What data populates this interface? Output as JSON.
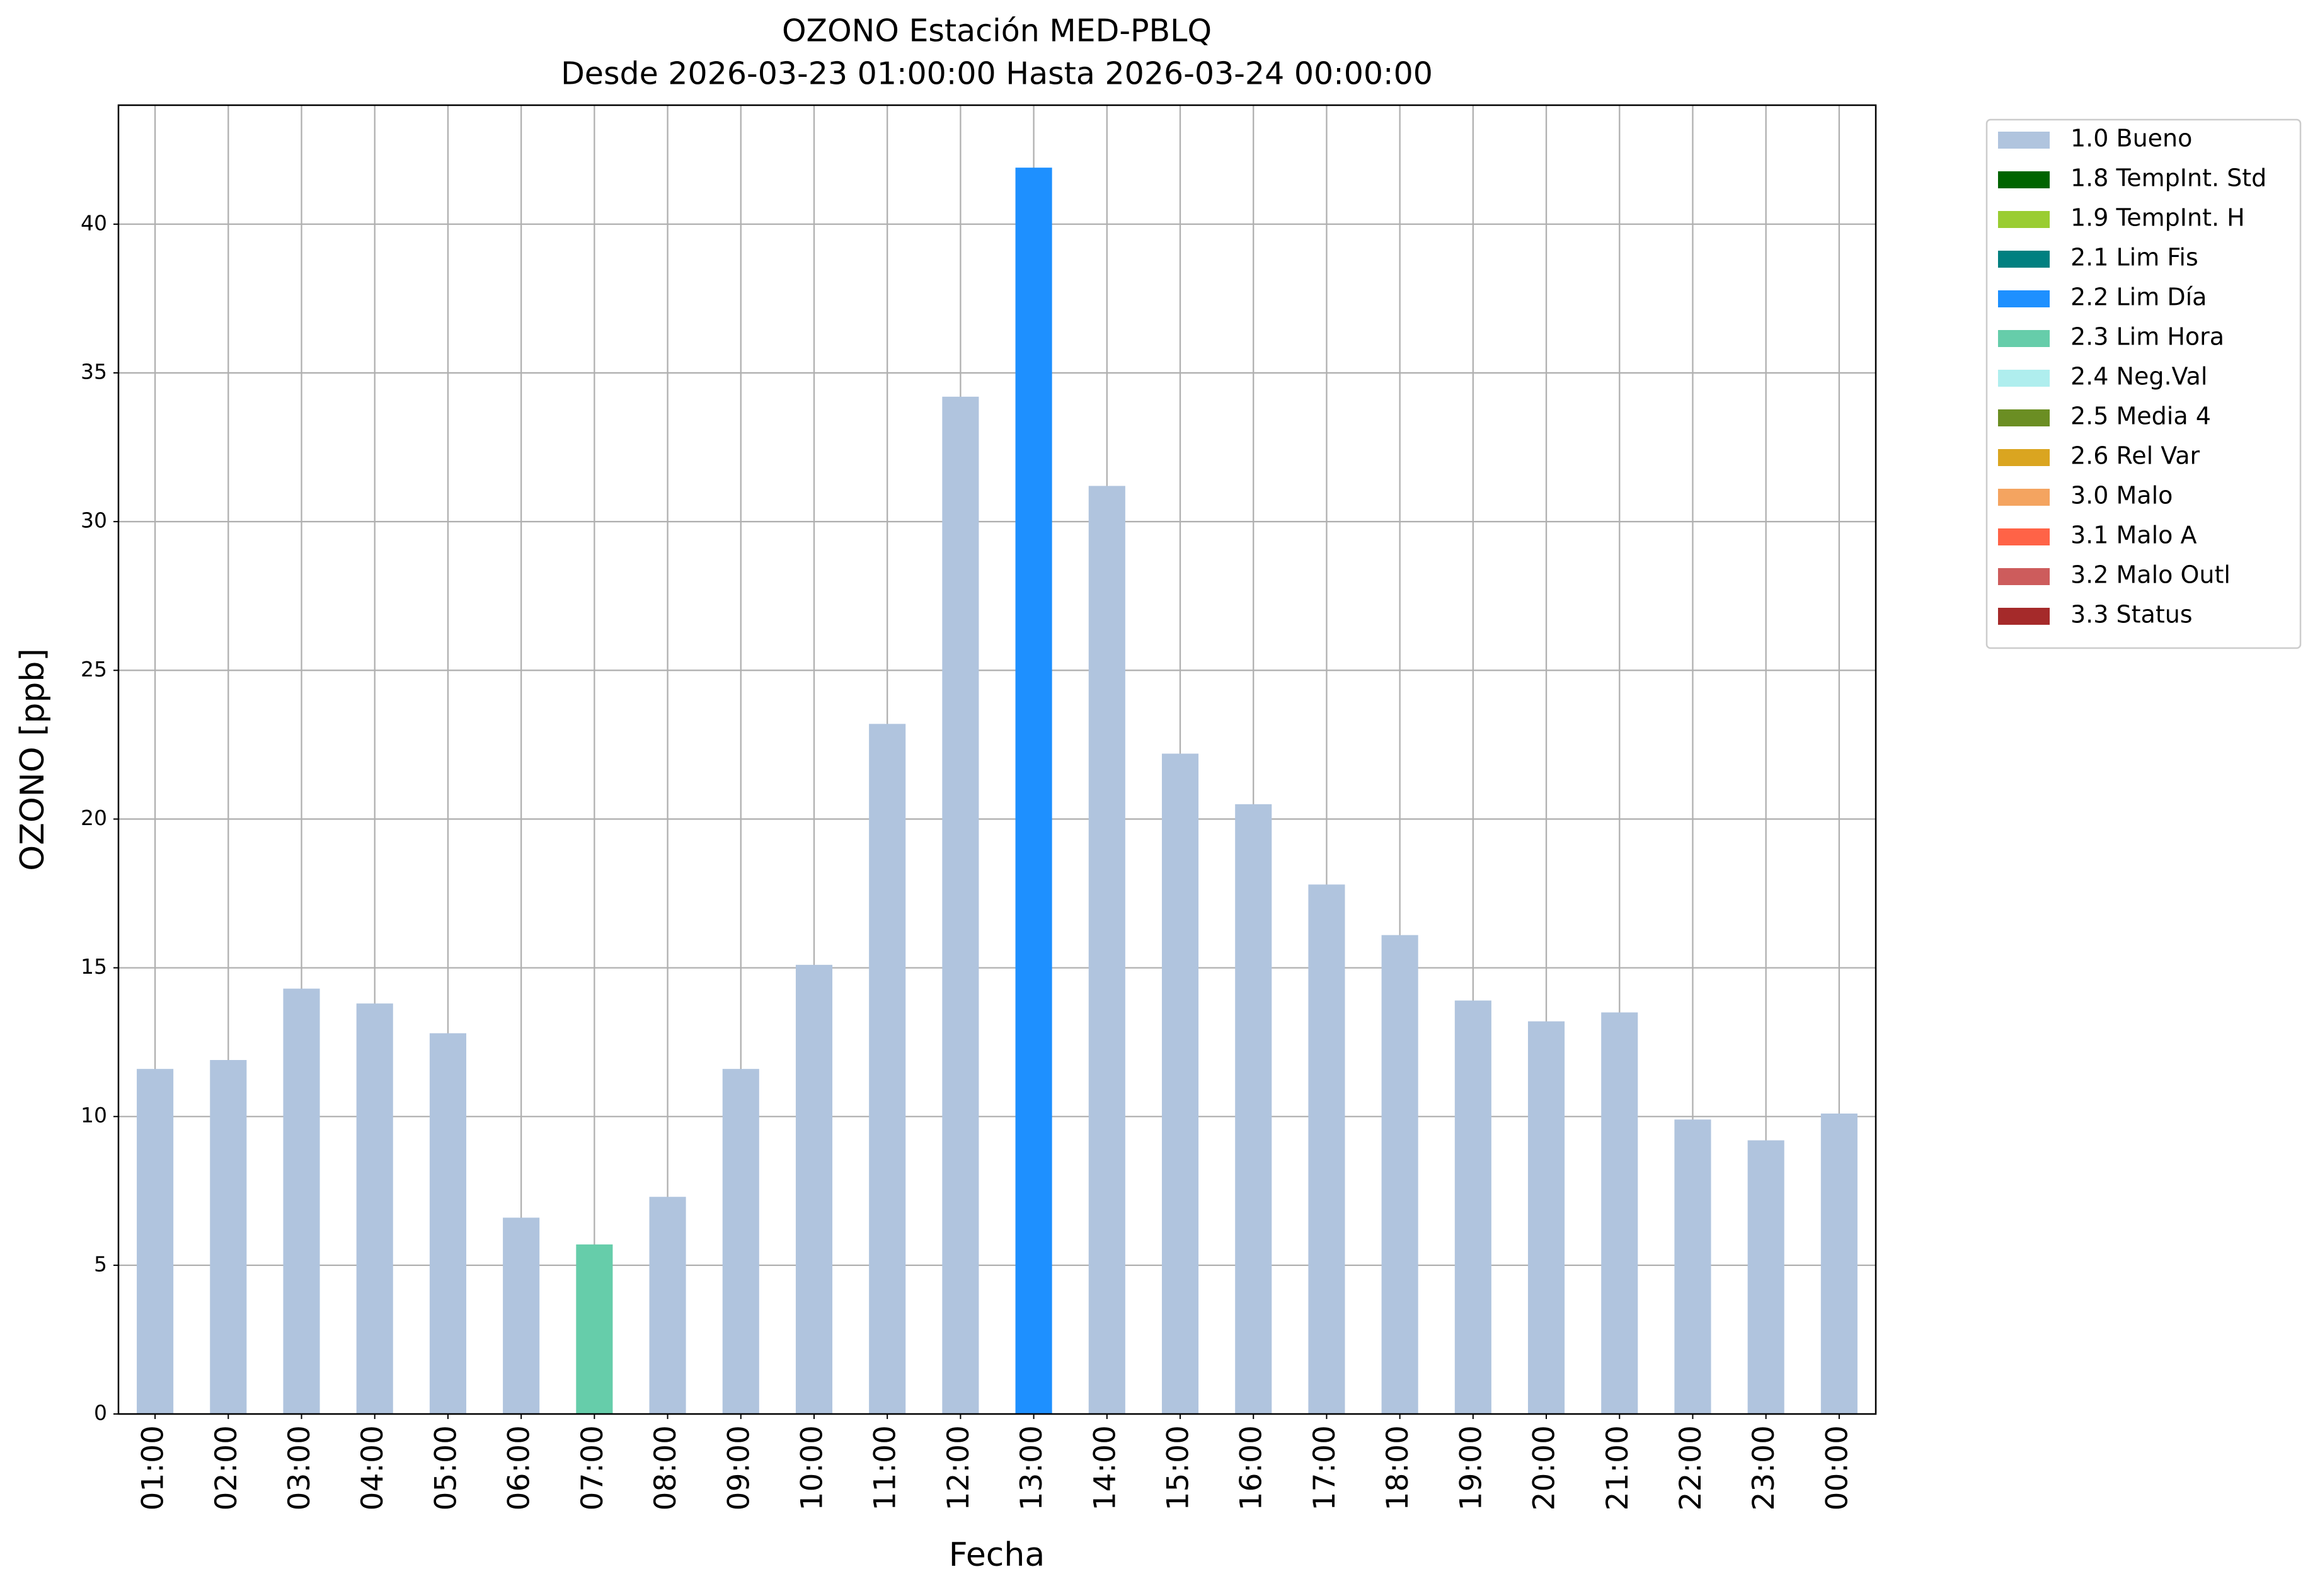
{
  "chart_data": {
    "type": "bar",
    "stacked": true,
    "title": "OZONO Estación MED-PBLQ",
    "subtitle": "Desde 2026-03-23 01:00:00 Hasta 2026-03-24 00:00:00",
    "x_label": "Fecha",
    "y_label": "OZONO [ppb]",
    "categories": [
      "01:00",
      "02:00",
      "03:00",
      "04:00",
      "05:00",
      "06:00",
      "07:00",
      "08:00",
      "09:00",
      "10:00",
      "11:00",
      "12:00",
      "13:00",
      "14:00",
      "15:00",
      "16:00",
      "17:00",
      "18:00",
      "19:00",
      "20:00",
      "21:00",
      "22:00",
      "23:00",
      "00:00"
    ],
    "series": [
      {
        "name": "1.0 Bueno",
        "color": "#b0c4de",
        "values": [
          11.6,
          11.9,
          14.3,
          13.8,
          12.8,
          6.6,
          null,
          7.3,
          11.6,
          15.1,
          23.2,
          34.2,
          null,
          31.2,
          22.2,
          20.5,
          17.8,
          16.1,
          13.9,
          13.2,
          13.5,
          9.9,
          9.2,
          10.1
        ]
      },
      {
        "name": "1.8 TempInt. Std",
        "color": "#006400",
        "values": [
          null,
          null,
          null,
          null,
          null,
          null,
          null,
          null,
          null,
          null,
          null,
          null,
          null,
          null,
          null,
          null,
          null,
          null,
          null,
          null,
          null,
          null,
          null,
          null
        ]
      },
      {
        "name": "1.9 TempInt. H",
        "color": "#9acd32",
        "values": [
          null,
          null,
          null,
          null,
          null,
          null,
          null,
          null,
          null,
          null,
          null,
          null,
          null,
          null,
          null,
          null,
          null,
          null,
          null,
          null,
          null,
          null,
          null,
          null
        ]
      },
      {
        "name": "2.1 Lim Fis",
        "color": "#008080",
        "values": [
          null,
          null,
          null,
          null,
          null,
          null,
          null,
          null,
          null,
          null,
          null,
          null,
          null,
          null,
          null,
          null,
          null,
          null,
          null,
          null,
          null,
          null,
          null,
          null
        ]
      },
      {
        "name": "2.2 Lim Día",
        "color": "#1e90ff",
        "values": [
          null,
          null,
          null,
          null,
          null,
          null,
          null,
          null,
          null,
          null,
          null,
          null,
          41.9,
          null,
          null,
          null,
          null,
          null,
          null,
          null,
          null,
          null,
          null,
          null
        ]
      },
      {
        "name": "2.3 Lim Hora",
        "color": "#66cdaa",
        "values": [
          null,
          null,
          null,
          null,
          null,
          null,
          5.7,
          null,
          null,
          null,
          null,
          null,
          null,
          null,
          null,
          null,
          null,
          null,
          null,
          null,
          null,
          null,
          null,
          null
        ]
      },
      {
        "name": "2.4 Neg.Val",
        "color": "#afeeee",
        "values": [
          null,
          null,
          null,
          null,
          null,
          null,
          null,
          null,
          null,
          null,
          null,
          null,
          null,
          null,
          null,
          null,
          null,
          null,
          null,
          null,
          null,
          null,
          null,
          null
        ]
      },
      {
        "name": "2.5 Media 4",
        "color": "#6b8e23",
        "values": [
          null,
          null,
          null,
          null,
          null,
          null,
          null,
          null,
          null,
          null,
          null,
          null,
          null,
          null,
          null,
          null,
          null,
          null,
          null,
          null,
          null,
          null,
          null,
          null
        ]
      },
      {
        "name": "2.6 Rel Var",
        "color": "#daa520",
        "values": [
          null,
          null,
          null,
          null,
          null,
          null,
          null,
          null,
          null,
          null,
          null,
          null,
          null,
          null,
          null,
          null,
          null,
          null,
          null,
          null,
          null,
          null,
          null,
          null
        ]
      },
      {
        "name": "3.0 Malo",
        "color": "#f4a460",
        "values": [
          null,
          null,
          null,
          null,
          null,
          null,
          null,
          null,
          null,
          null,
          null,
          null,
          null,
          null,
          null,
          null,
          null,
          null,
          null,
          null,
          null,
          null,
          null,
          null
        ]
      },
      {
        "name": "3.1 Malo A",
        "color": "#ff6347",
        "values": [
          null,
          null,
          null,
          null,
          null,
          null,
          null,
          null,
          null,
          null,
          null,
          null,
          null,
          null,
          null,
          null,
          null,
          null,
          null,
          null,
          null,
          null,
          null,
          null
        ]
      },
      {
        "name": "3.2 Malo Outl",
        "color": "#cd5c5c",
        "values": [
          null,
          null,
          null,
          null,
          null,
          null,
          null,
          null,
          null,
          null,
          null,
          null,
          null,
          null,
          null,
          null,
          null,
          null,
          null,
          null,
          null,
          null,
          null,
          null
        ]
      },
      {
        "name": "3.3 Status",
        "color": "#a52a2a",
        "values": [
          null,
          null,
          null,
          null,
          null,
          null,
          null,
          null,
          null,
          null,
          null,
          null,
          null,
          null,
          null,
          null,
          null,
          null,
          null,
          null,
          null,
          null,
          null,
          null
        ]
      }
    ],
    "ylim": [
      0,
      44
    ],
    "yticks": [
      0,
      5,
      10,
      15,
      20,
      25,
      30,
      35,
      40
    ],
    "grid": true,
    "legend": "outside upper right"
  }
}
